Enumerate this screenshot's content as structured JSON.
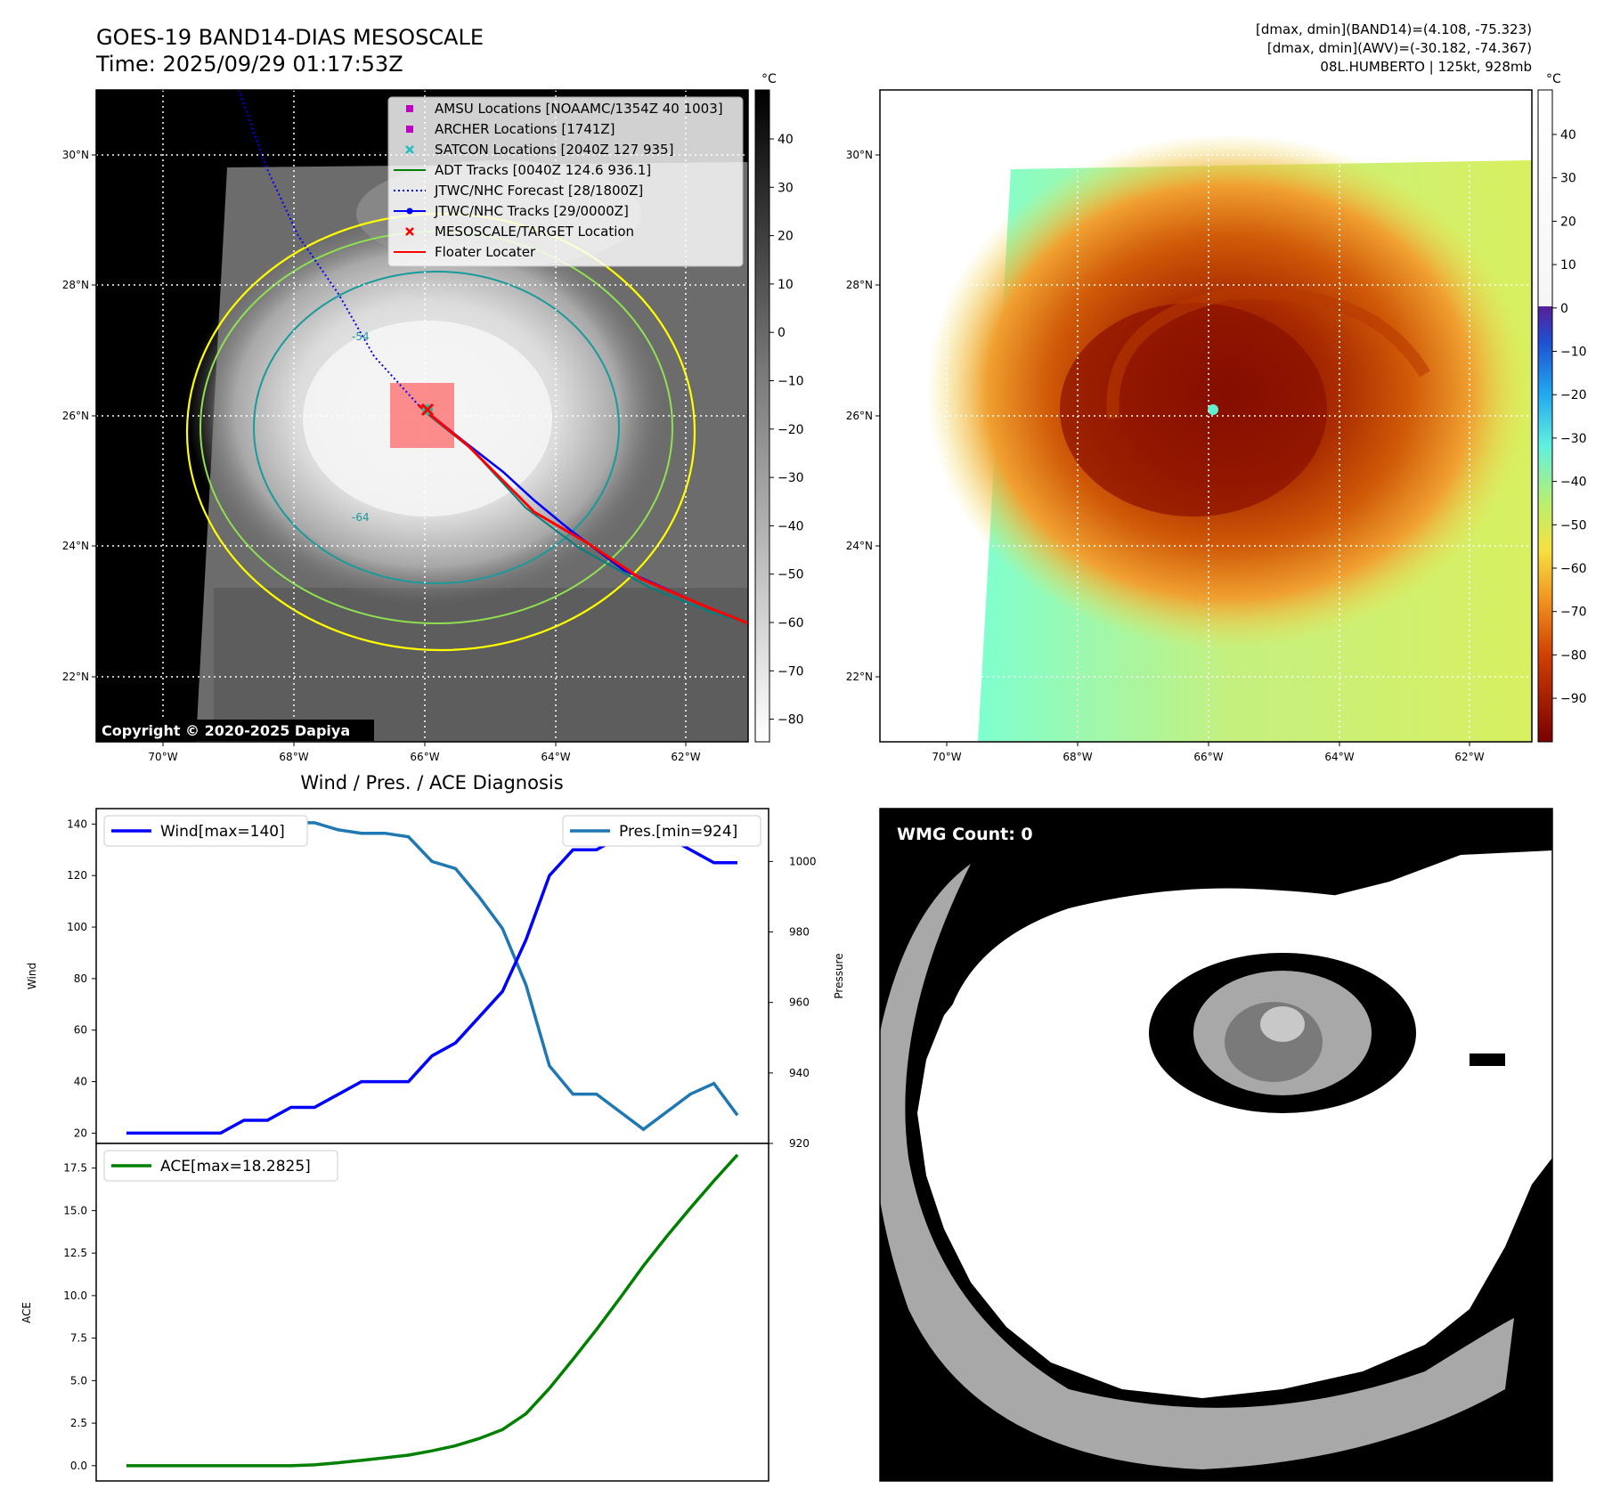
{
  "header": {
    "title_line1": "GOES-19 BAND14-DIAS MESOSCALE",
    "title_line2": "Time: 2025/09/29 01:17:53Z",
    "info_line1": "[dmax, dmin](BAND14)=(4.108, -75.323)",
    "info_line2": "[dmax, dmin](AWV)=(-30.182, -74.367)",
    "info_line3": "08L.HUMBERTO | 125kt, 928mb"
  },
  "map": {
    "lat_ticks": [
      "30°N",
      "28°N",
      "26°N",
      "24°N",
      "22°N"
    ],
    "lon_ticks": [
      "70°W",
      "68°W",
      "66°W",
      "64°W",
      "62°W"
    ],
    "contour_labels": [
      "-54",
      "-64"
    ],
    "copyright": "Copyright © 2020-2025 Dapiya",
    "legend": [
      {
        "label": "AMSU Locations [NOAAMC/1354Z 40 1003]",
        "marker": "square",
        "color": "#c000c0"
      },
      {
        "label": "ARCHER Locations [1741Z]",
        "marker": "square",
        "color": "#c000c0"
      },
      {
        "label": "SATCON Locations [2040Z 127 935]",
        "marker": "x",
        "color": "#20c0c0"
      },
      {
        "label": "ADT Tracks [0040Z 124.6 936.1]",
        "marker": "line",
        "color": "#008000"
      },
      {
        "label": "JTWC/NHC Forecast [28/1800Z]",
        "marker": "dotted",
        "color": "#0000ff"
      },
      {
        "label": "JTWC/NHC Tracks [29/0000Z]",
        "marker": "line-dot",
        "color": "#0000ff"
      },
      {
        "label": "MESOSCALE/TARGET Location",
        "marker": "x",
        "color": "#ff0000"
      },
      {
        "label": "Floater Locater",
        "marker": "line",
        "color": "#ff0000"
      }
    ]
  },
  "colorbar_gray": {
    "unit": "°C",
    "ticks": [
      "40",
      "30",
      "20",
      "10",
      "0",
      "−10",
      "−20",
      "−30",
      "−40",
      "−50",
      "−60",
      "−70",
      "−80"
    ]
  },
  "colorbar_color": {
    "unit": "°C",
    "ticks": [
      "40",
      "30",
      "20",
      "10",
      "0",
      "−10",
      "−20",
      "−30",
      "−40",
      "−50",
      "−60",
      "−70",
      "−80",
      "−90"
    ]
  },
  "colors": {
    "wind": "#0000ff",
    "pressure": "#1f77b4",
    "ace": "#008000",
    "forecast_track": "#0000ff",
    "floater": "#ff0000",
    "contour_yellow": "#ffff00",
    "contour_green": "#90e050",
    "contour_teal": "#1a9a9a"
  },
  "chart_data": [
    {
      "type": "line",
      "title": "Wind / Pres. / ACE Diagnosis",
      "ylabel": "Wind",
      "ylim": [
        16,
        146
      ],
      "yticks": [
        20,
        40,
        60,
        80,
        100,
        120,
        140
      ],
      "series": [
        {
          "name": "Wind[max=140]",
          "axis": "left",
          "values": [
            20,
            20,
            20,
            20,
            20,
            25,
            25,
            30,
            30,
            35,
            40,
            40,
            40,
            50,
            55,
            65,
            75,
            95,
            120,
            130,
            130,
            135,
            140,
            135,
            130,
            125,
            125
          ]
        }
      ],
      "y2label": "Pressure",
      "y2lim": [
        920,
        1015
      ],
      "y2ticks": [
        920,
        940,
        960,
        980,
        1000
      ],
      "series2": [
        {
          "name": "Pres.[min=924]",
          "axis": "right",
          "values": [
            1012,
            1012,
            1012,
            1012,
            1012,
            1012,
            1012,
            1011,
            1011,
            1009,
            1008,
            1008,
            1007,
            1000,
            998,
            990,
            981,
            965,
            942,
            934,
            934,
            929,
            924,
            929,
            934,
            937,
            928
          ]
        }
      ]
    },
    {
      "type": "line",
      "ylabel": "ACE",
      "ylim": [
        -0.9,
        18.95
      ],
      "yticks": [
        "0.0",
        "2.5",
        "5.0",
        "7.5",
        "10.0",
        "12.5",
        "15.0",
        "17.5"
      ],
      "series": [
        {
          "name": "ACE[max=18.2825]",
          "values": [
            0,
            0,
            0,
            0,
            0,
            0,
            0,
            0,
            0.05,
            0.17,
            0.31,
            0.46,
            0.62,
            0.87,
            1.17,
            1.59,
            2.12,
            3.05,
            4.55,
            6.25,
            8.0,
            9.85,
            11.75,
            13.5,
            15.15,
            16.75,
            18.28
          ]
        }
      ]
    }
  ],
  "wmg": {
    "label": "WMG Count: 0"
  }
}
